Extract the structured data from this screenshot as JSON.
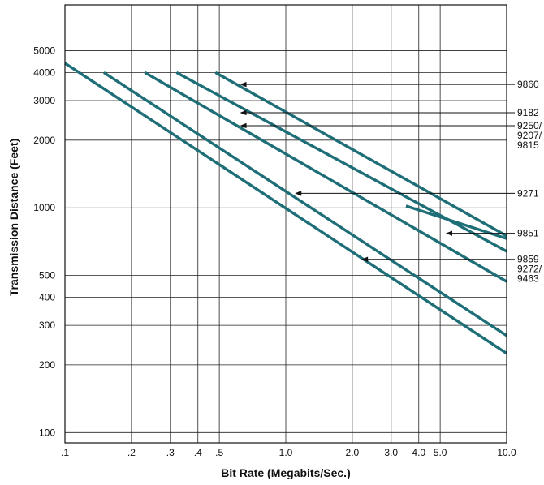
{
  "chart_data": {
    "type": "line",
    "xlabel": "Bit Rate (Megabits/Sec.)",
    "ylabel": "Transmission Distance (Feet)",
    "x_scale": "log",
    "y_scale": "log",
    "xlim": [
      0.1,
      10.0
    ],
    "ylim": [
      90,
      8000
    ],
    "grid": true,
    "series_color": "#1e6e78",
    "x_ticks": [
      {
        "value": 0.1,
        "label": ".1"
      },
      {
        "value": 0.2,
        "label": ".2"
      },
      {
        "value": 0.3,
        "label": ".3"
      },
      {
        "value": 0.4,
        "label": ".4"
      },
      {
        "value": 0.5,
        "label": ".5"
      },
      {
        "value": 1.0,
        "label": "1.0"
      },
      {
        "value": 2.0,
        "label": "2.0"
      },
      {
        "value": 3.0,
        "label": "3.0"
      },
      {
        "value": 4.0,
        "label": "4.0"
      },
      {
        "value": 5.0,
        "label": "5.0"
      },
      {
        "value": 10.0,
        "label": "10.0"
      }
    ],
    "y_ticks": [
      {
        "value": 100,
        "label": "100"
      },
      {
        "value": 200,
        "label": "200"
      },
      {
        "value": 300,
        "label": "300"
      },
      {
        "value": 400,
        "label": "400"
      },
      {
        "value": 500,
        "label": "500"
      },
      {
        "value": 1000,
        "label": "1000"
      },
      {
        "value": 2000,
        "label": "2000"
      },
      {
        "value": 3000,
        "label": "3000"
      },
      {
        "value": 4000,
        "label": "4000"
      },
      {
        "value": 5000,
        "label": "5000"
      }
    ],
    "series": [
      {
        "points": [
          [
            0.48,
            4000
          ],
          [
            10.0,
            750
          ]
        ]
      },
      {
        "points": [
          [
            0.32,
            4000
          ],
          [
            10.0,
            640
          ]
        ]
      },
      {
        "points": [
          [
            0.23,
            4000
          ],
          [
            10.0,
            470
          ]
        ]
      },
      {
        "points": [
          [
            0.15,
            4000
          ],
          [
            10.0,
            270
          ]
        ]
      },
      {
        "points": [
          [
            0.1,
            4400
          ],
          [
            10.0,
            225
          ]
        ]
      },
      {
        "points": [
          [
            3.5,
            1020
          ],
          [
            10.0,
            730
          ]
        ]
      }
    ],
    "annotations": [
      {
        "label": "9860",
        "x": 0.62,
        "y": 3540
      },
      {
        "label": "9182",
        "x": 0.62,
        "y": 2650
      },
      {
        "label": "9250/",
        "x": 0.62,
        "y": 2320
      },
      {
        "label": "9207/",
        "x": 0.62,
        "y": 2320
      },
      {
        "label": "9815",
        "x": 0.62,
        "y": 2320
      },
      {
        "label": "9271",
        "x": 1.1,
        "y": 1160
      },
      {
        "label": "9851",
        "x": 5.3,
        "y": 770
      },
      {
        "label": "9859",
        "x": 2.2,
        "y": 590
      },
      {
        "label": "9272/",
        "x": 2.2,
        "y": 590
      },
      {
        "label": "9463",
        "x": 2.2,
        "y": 590
      }
    ]
  }
}
